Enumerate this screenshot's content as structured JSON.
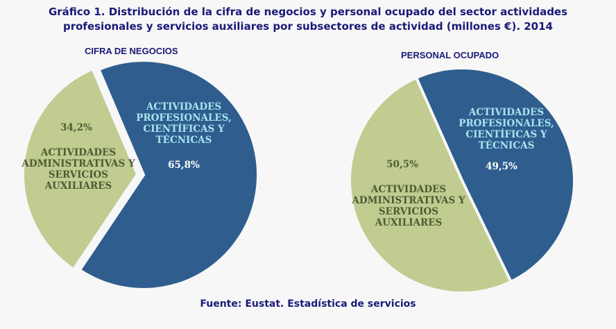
{
  "chart_data": [
    {
      "type": "pie",
      "title": "CIFRA DE NEGOCIOS",
      "slices": [
        {
          "label": "ACTIVIDADES PROFESIONALES, CIENTÍFICAS Y TÉCNICAS",
          "value": 65.8,
          "value_label": "65,8%",
          "color": "#2f5e8e"
        },
        {
          "label": "ACTIVIDADES ADMINISTRATIVAS Y SERVICIOS AUXILIARES",
          "value": 34.2,
          "value_label": "34,2%",
          "color": "#c0cc90"
        }
      ]
    },
    {
      "type": "pie",
      "title": "PERSONAL OCUPADO",
      "slices": [
        {
          "label": "ACTIVIDADES PROFESIONALES, CIENTÍFICAS Y TÉCNICAS",
          "value": 49.5,
          "value_label": "49,5%",
          "color": "#2f5e8e"
        },
        {
          "label": "ACTIVIDADES ADMINISTRATIVAS Y SERVICIOS AUXILIARES",
          "value": 50.5,
          "value_label": "50,5%",
          "color": "#c0cc90"
        }
      ]
    }
  ],
  "title_line1": "Gráfico 1. Distribución de la cifra de negocios y personal ocupado del sector actividades",
  "title_line2": "profesionales y servicios auxiliares por subsectores de actividad (millones €). 2014",
  "source": "Fuente: Eustat. Estadística de servicios"
}
